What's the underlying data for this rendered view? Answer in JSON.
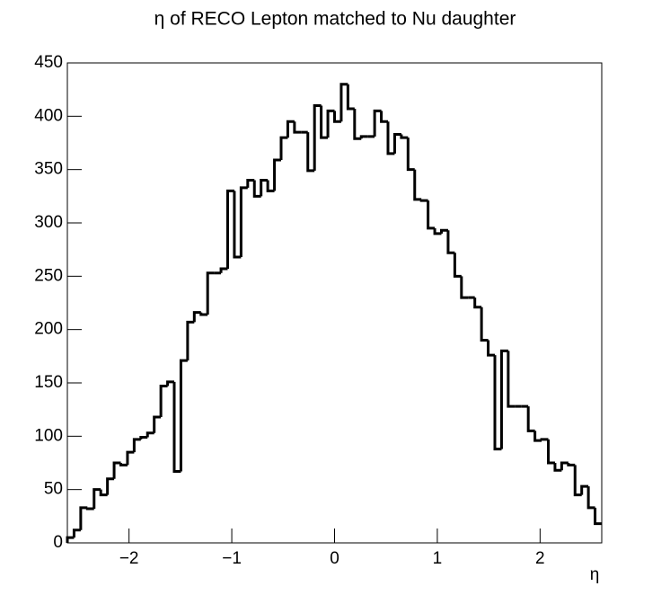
{
  "chart_data": {
    "type": "histogram",
    "title": "η of RECO Lepton matched to Nu daughter",
    "x_label": "η",
    "bins": [
      -2.6,
      -2.535,
      -2.47,
      -2.405,
      -2.34,
      -2.275,
      -2.21,
      -2.145,
      -2.08,
      -2.015,
      -1.95,
      -1.885,
      -1.82,
      -1.755,
      -1.69,
      -1.625,
      -1.56,
      -1.495,
      -1.43,
      -1.365,
      -1.3,
      -1.235,
      -1.17,
      -1.105,
      -1.04,
      -0.975,
      -0.91,
      -0.845,
      -0.78,
      -0.715,
      -0.65,
      -0.585,
      -0.52,
      -0.455,
      -0.39,
      -0.325,
      -0.26,
      -0.195,
      -0.13,
      -0.065,
      0,
      0.065,
      0.13,
      0.195,
      0.26,
      0.325,
      0.39,
      0.455,
      0.52,
      0.585,
      0.65,
      0.715,
      0.78,
      0.845,
      0.91,
      0.975,
      1.04,
      1.105,
      1.17,
      1.235,
      1.3,
      1.365,
      1.43,
      1.495,
      1.56,
      1.625,
      1.69,
      1.755,
      1.82,
      1.885,
      1.95,
      2.015,
      2.08,
      2.145,
      2.21,
      2.275,
      2.34,
      2.405,
      2.47,
      2.535,
      2.6
    ],
    "values": [
      5,
      12,
      33,
      32,
      50,
      45,
      60,
      75,
      73,
      85,
      97,
      99,
      103,
      118,
      147,
      151,
      67,
      171,
      207,
      216,
      214,
      253,
      253,
      257,
      330,
      268,
      333,
      340,
      325,
      340,
      330,
      359,
      380,
      395,
      385,
      385,
      349,
      410,
      380,
      405,
      395,
      430,
      407,
      379,
      381,
      381,
      405,
      395,
      365,
      383,
      380,
      350,
      322,
      321,
      295,
      290,
      293,
      272,
      250,
      230,
      230,
      221,
      190,
      176,
      88,
      180,
      128,
      128,
      128,
      105,
      96,
      97,
      75,
      68,
      75,
      73,
      45,
      53,
      33,
      18
    ],
    "color": "#000000",
    "xlim": [
      -2.6,
      2.6
    ],
    "xticks": [
      {
        "value": -2,
        "label": "−2"
      },
      {
        "value": -1,
        "label": "−1"
      },
      0,
      1,
      2
    ],
    "ylim": [
      0,
      450
    ],
    "yticks": [
      0,
      50,
      100,
      150,
      200,
      250,
      300,
      350,
      400,
      450
    ]
  }
}
